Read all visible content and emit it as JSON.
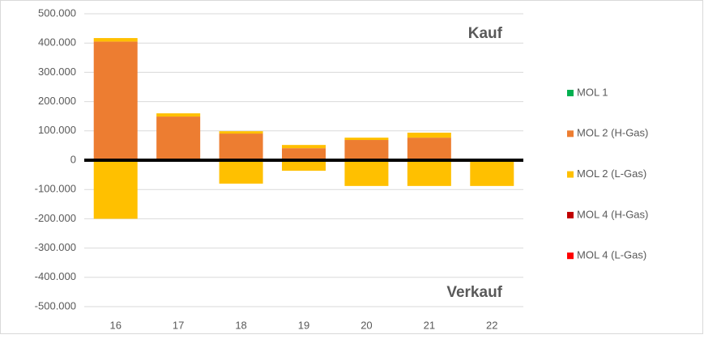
{
  "chart_data": {
    "type": "stacked-bar",
    "categories": [
      "16",
      "17",
      "18",
      "19",
      "20",
      "21",
      "22"
    ],
    "annotations": [
      "Kauf",
      "Verkauf"
    ],
    "ylim": [
      -500000,
      500000
    ],
    "yticks": [
      {
        "value": 500000,
        "label": "500.000"
      },
      {
        "value": 400000,
        "label": "400.000"
      },
      {
        "value": 300000,
        "label": "300.000"
      },
      {
        "value": 200000,
        "label": "200.000"
      },
      {
        "value": 100000,
        "label": "100.000"
      },
      0,
      {
        "value": -100000,
        "label": "-100.000"
      },
      {
        "value": -200000,
        "label": "-200.000"
      },
      {
        "value": -300000,
        "label": "-300.000"
      },
      {
        "value": -400000,
        "label": "-400.000"
      },
      {
        "value": -500000,
        "label": "-500.000"
      }
    ],
    "grid": true,
    "series": [
      {
        "name": "MOL 1",
        "color": "#00b050",
        "values": [
          0,
          0,
          0,
          0,
          0,
          0,
          0
        ],
        "sell": [
          0,
          0,
          0,
          0,
          0,
          0,
          -5000
        ]
      },
      {
        "name": "MOL 2 (H-Gas)",
        "color": "#ed7d31",
        "values": [
          405000,
          149000,
          91000,
          41000,
          69000,
          77000,
          0
        ],
        "sell": [
          0,
          0,
          0,
          0,
          0,
          0,
          0
        ]
      },
      {
        "name": "MOL 2 (L-Gas)",
        "color": "#ffc000",
        "values": [
          12000,
          11000,
          8000,
          11000,
          8000,
          17000,
          0
        ],
        "sell": [
          -200000,
          0,
          -80000,
          -36000,
          -88000,
          -88000,
          -83000
        ]
      },
      {
        "name": "MOL 4 (H-Gas)",
        "color": "#c00000",
        "values": [
          0,
          0,
          0,
          0,
          0,
          0,
          0
        ],
        "sell": [
          0,
          0,
          0,
          0,
          0,
          0,
          0
        ]
      },
      {
        "name": "MOL 4 (L-Gas)",
        "color": "#ff0000",
        "values": [
          0,
          0,
          0,
          0,
          0,
          0,
          0
        ],
        "sell": [
          0,
          0,
          0,
          0,
          0,
          0,
          0
        ]
      }
    ]
  }
}
